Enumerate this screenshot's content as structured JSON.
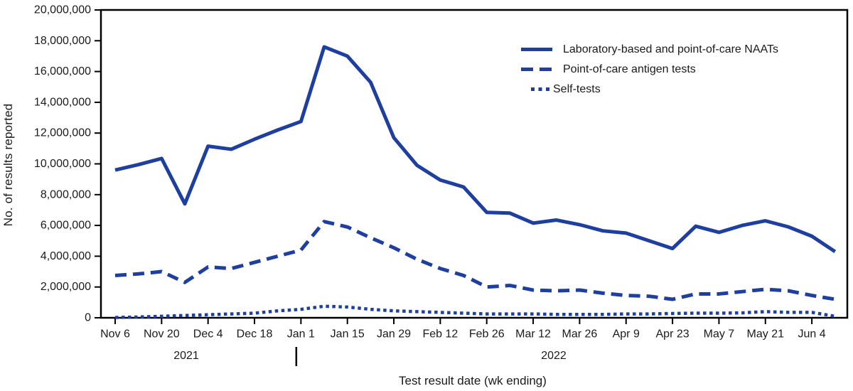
{
  "figure": {
    "background": "#ffffff",
    "accent_color": "#1e3f9e",
    "axis_color": "#000000",
    "text_color": "#1a1a1a"
  },
  "legend": {
    "items": [
      {
        "label": "Laboratory-based and point-of-care NAATs",
        "style": "solid"
      },
      {
        "label": "Point-of-care antigen tests",
        "style": "dashed"
      },
      {
        "label": "Self-tests",
        "style": "dotted"
      }
    ]
  },
  "chart_data": {
    "type": "line",
    "title": "",
    "xlabel": "Test result date (wk ending)",
    "ylabel": "No. of results reported",
    "ylim": [
      0,
      20000000
    ],
    "grid": false,
    "legend_position": "top-right",
    "year_labels": {
      "left": "2021",
      "right": "2022"
    },
    "y_tick_labels": [
      "0",
      "2,000,000",
      "4,000,000",
      "6,000,000",
      "8,000,000",
      "10,000,000",
      "12,000,000",
      "14,000,000",
      "16,000,000",
      "18,000,000",
      "20,000,000"
    ],
    "y_tick_values": [
      0,
      2000000,
      4000000,
      6000000,
      8000000,
      10000000,
      12000000,
      14000000,
      16000000,
      18000000,
      20000000
    ],
    "categories": [
      "Nov 6, 2021",
      "Nov 13, 2021",
      "Nov 20, 2021",
      "Nov 27, 2021",
      "Dec 4, 2021",
      "Dec 11, 2021",
      "Dec 18, 2021",
      "Dec 25, 2021",
      "Jan 1, 2022",
      "Jan 8, 2022",
      "Jan 15, 2022",
      "Jan 22, 2022",
      "Jan 29, 2022",
      "Feb 5, 2022",
      "Feb 12, 2022",
      "Feb 19, 2022",
      "Feb 26, 2022",
      "Mar 5, 2022",
      "Mar 12, 2022",
      "Mar 19, 2022",
      "Mar 26, 2022",
      "Apr 2, 2022",
      "Apr 9, 2022",
      "Apr 16, 2022",
      "Apr 23, 2022",
      "Apr 30, 2022",
      "May 7, 2022",
      "May 14, 2022",
      "May 21, 2022",
      "May 28, 2022",
      "Jun 4, 2022",
      "Jun 11, 2022"
    ],
    "x_tick_labels": [
      "Nov 6",
      "Nov 20",
      "Dec 4",
      "Dec 18",
      "Jan 1",
      "Jan 15",
      "Jan 29",
      "Feb 12",
      "Feb 26",
      "Mar 12",
      "Mar 26",
      "Apr 9",
      "Apr 23",
      "May 7",
      "May 21",
      "Jun 4"
    ],
    "x_tick_week_indices": [
      0,
      2,
      4,
      6,
      8,
      10,
      12,
      14,
      16,
      18,
      20,
      22,
      24,
      26,
      28,
      30
    ],
    "year_separator_week_index": 7.8,
    "series": [
      {
        "name": "Laboratory-based and point-of-care NAATs",
        "line_style": "solid",
        "values": [
          9600000,
          9950000,
          10350000,
          7400000,
          11150000,
          10950000,
          11600000,
          12200000,
          12750000,
          17600000,
          17000000,
          15300000,
          11700000,
          9900000,
          8950000,
          8500000,
          6850000,
          6800000,
          6150000,
          6350000,
          6050000,
          5650000,
          5500000,
          5000000,
          4500000,
          5950000,
          5550000,
          6000000,
          6300000,
          5900000,
          5300000,
          4300000
        ]
      },
      {
        "name": "Point-of-care antigen tests",
        "line_style": "dashed",
        "values": [
          2750000,
          2850000,
          3000000,
          2300000,
          3300000,
          3200000,
          3600000,
          4000000,
          4400000,
          6250000,
          5900000,
          5200000,
          4550000,
          3800000,
          3200000,
          2750000,
          2000000,
          2100000,
          1800000,
          1750000,
          1800000,
          1600000,
          1450000,
          1400000,
          1200000,
          1550000,
          1550000,
          1700000,
          1850000,
          1750000,
          1450000,
          1200000
        ]
      },
      {
        "name": "Self-tests",
        "line_style": "dotted",
        "values": [
          20000,
          50000,
          100000,
          150000,
          200000,
          250000,
          300000,
          450000,
          550000,
          750000,
          700000,
          550000,
          450000,
          400000,
          350000,
          300000,
          250000,
          250000,
          250000,
          220000,
          220000,
          220000,
          250000,
          250000,
          280000,
          300000,
          300000,
          320000,
          400000,
          350000,
          350000,
          100000
        ]
      }
    ]
  }
}
